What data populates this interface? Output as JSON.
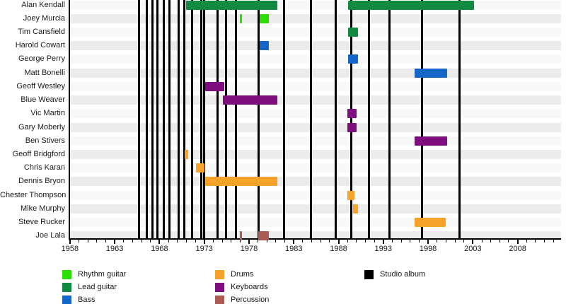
{
  "chart_data": {
    "type": "bar",
    "subtype": "horizontal-membership-timeline",
    "title": "",
    "xlabel": "",
    "ylabel": "",
    "x_axis": {
      "range": [
        1957.85,
        2012.85
      ],
      "major_ticks": [
        1958,
        1963,
        1968,
        1973,
        1978,
        1983,
        1988,
        1993,
        1998,
        2003,
        2008
      ],
      "minor_tick_step": 1,
      "grid": "off"
    },
    "colors": {
      "rhythm_guitar": "#2ADF00",
      "lead_guitar": "#0F8A40",
      "bass": "#1467C8",
      "drums": "#F6A22B",
      "keyboards": "#7E0D7E",
      "percussion": "#AC5B52",
      "studio_album": "#000000",
      "row_band_odd": "#ececec",
      "row_band_even": "#f8f8f8",
      "axis": "#000000"
    },
    "members": [
      {
        "name": "Alan Kendall",
        "segments": [
          {
            "role": "lead_guitar",
            "start": 1971.0,
            "end": 1981.2
          },
          {
            "role": "lead_guitar",
            "start": 1989.1,
            "end": 2003.1
          }
        ]
      },
      {
        "name": "Joey Murcia",
        "segments": [
          {
            "role": "rhythm_guitar",
            "start": 1977.0,
            "end": 1977.25
          },
          {
            "role": "rhythm_guitar",
            "start": 1979.15,
            "end": 1980.2
          }
        ]
      },
      {
        "name": "Tim Cansfield",
        "segments": [
          {
            "role": "lead_guitar",
            "start": 1989.1,
            "end": 1990.2
          }
        ]
      },
      {
        "name": "Harold Cowart",
        "segments": [
          {
            "role": "bass",
            "start": 1979.15,
            "end": 1980.2
          }
        ]
      },
      {
        "name": "George Perry",
        "segments": [
          {
            "role": "bass",
            "start": 1989.1,
            "end": 1990.2
          }
        ]
      },
      {
        "name": "Matt Bonelli",
        "segments": [
          {
            "role": "bass",
            "start": 1996.5,
            "end": 2000.1
          }
        ]
      },
      {
        "name": "Geoff Westley",
        "segments": [
          {
            "role": "keyboards",
            "start": 1973.1,
            "end": 1975.2
          }
        ]
      },
      {
        "name": "Blue Weaver",
        "segments": [
          {
            "role": "keyboards",
            "start": 1975.05,
            "end": 1981.2
          }
        ]
      },
      {
        "name": "Vic Martin",
        "segments": [
          {
            "role": "keyboards",
            "start": 1989.0,
            "end": 1990.0
          }
        ]
      },
      {
        "name": "Gary Moberly",
        "segments": [
          {
            "role": "keyboards",
            "start": 1989.0,
            "end": 1990.0
          }
        ]
      },
      {
        "name": "Ben Stivers",
        "segments": [
          {
            "role": "keyboards",
            "start": 1996.5,
            "end": 2000.1
          }
        ]
      },
      {
        "name": "Geoff Bridgford",
        "segments": [
          {
            "role": "drums",
            "start": 1970.8,
            "end": 1971.2
          }
        ]
      },
      {
        "name": "Chris Karan",
        "segments": [
          {
            "role": "drums",
            "start": 1972.05,
            "end": 1973.0
          }
        ]
      },
      {
        "name": "Dennis Bryon",
        "segments": [
          {
            "role": "drums",
            "start": 1973.1,
            "end": 1981.2
          }
        ]
      },
      {
        "name": "Chester Thompson",
        "segments": [
          {
            "role": "drums",
            "start": 1989.0,
            "end": 1989.8
          }
        ]
      },
      {
        "name": "Mike Murphy",
        "segments": [
          {
            "role": "drums",
            "start": 1989.65,
            "end": 1990.2
          }
        ]
      },
      {
        "name": "Steve Rucker",
        "segments": [
          {
            "role": "drums",
            "start": 1996.5,
            "end": 2000.0
          }
        ]
      },
      {
        "name": "Joe Lala",
        "segments": [
          {
            "role": "percussion",
            "start": 1977.0,
            "end": 1977.25
          },
          {
            "role": "percussion",
            "start": 1979.0,
            "end": 1980.2
          }
        ]
      }
    ],
    "studio_albums": [
      1965.75,
      1966.55,
      1967.2,
      1967.8,
      1968.45,
      1969.15,
      1970.15,
      1970.8,
      1971.65,
      1972.7,
      1973.0,
      1974.5,
      1975.45,
      1976.55,
      1979.1,
      1981.9,
      1984.9,
      1987.7,
      1989.4,
      1991.4,
      1993.65,
      1997.3,
      2001.5
    ],
    "legend": {
      "position": "bottom",
      "columns": [
        [
          {
            "key": "rhythm_guitar",
            "label": "Rhythm guitar"
          },
          {
            "key": "lead_guitar",
            "label": "Lead guitar"
          },
          {
            "key": "bass",
            "label": "Bass"
          }
        ],
        [
          {
            "key": "drums",
            "label": "Drums"
          },
          {
            "key": "keyboards",
            "label": "Keyboards"
          },
          {
            "key": "percussion",
            "label": "Percussion"
          }
        ],
        [
          {
            "key": "studio_album",
            "label": "Studio album"
          }
        ]
      ]
    }
  }
}
